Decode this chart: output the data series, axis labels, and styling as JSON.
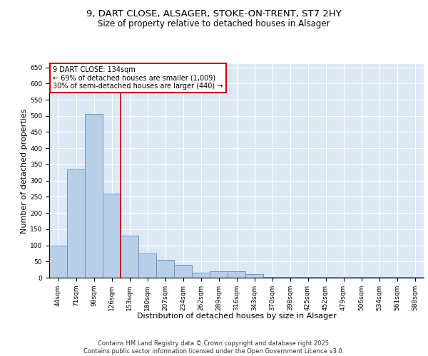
{
  "title1": "9, DART CLOSE, ALSAGER, STOKE-ON-TRENT, ST7 2HY",
  "title2": "Size of property relative to detached houses in Alsager",
  "xlabel": "Distribution of detached houses by size in Alsager",
  "ylabel": "Number of detached properties",
  "categories": [
    "44sqm",
    "71sqm",
    "98sqm",
    "126sqm",
    "153sqm",
    "180sqm",
    "207sqm",
    "234sqm",
    "262sqm",
    "289sqm",
    "316sqm",
    "343sqm",
    "370sqm",
    "398sqm",
    "425sqm",
    "452sqm",
    "479sqm",
    "506sqm",
    "534sqm",
    "561sqm",
    "588sqm"
  ],
  "values": [
    100,
    335,
    505,
    260,
    130,
    75,
    55,
    40,
    15,
    20,
    20,
    10,
    3,
    2,
    2,
    2,
    2,
    2,
    2,
    2,
    3
  ],
  "bar_color": "#b8cfe8",
  "bar_edge_color": "#6699cc",
  "background_color": "#dde8f5",
  "grid_color": "#ffffff",
  "annotation_text": "9 DART CLOSE: 134sqm\n← 69% of detached houses are smaller (1,009)\n30% of semi-detached houses are larger (440) →",
  "annotation_box_color": "#ffffff",
  "annotation_box_edge": "#cc0000",
  "vline_x": 3.5,
  "vline_color": "#cc0000",
  "ylim": [
    0,
    660
  ],
  "yticks": [
    0,
    50,
    100,
    150,
    200,
    250,
    300,
    350,
    400,
    450,
    500,
    550,
    600,
    650
  ],
  "footer": "Contains HM Land Registry data © Crown copyright and database right 2025.\nContains public sector information licensed under the Open Government Licence v3.0.",
  "title_fontsize": 9.5,
  "subtitle_fontsize": 8.5,
  "axis_fontsize": 8,
  "tick_fontsize": 6.5,
  "footer_fontsize": 6,
  "ann_fontsize": 7
}
